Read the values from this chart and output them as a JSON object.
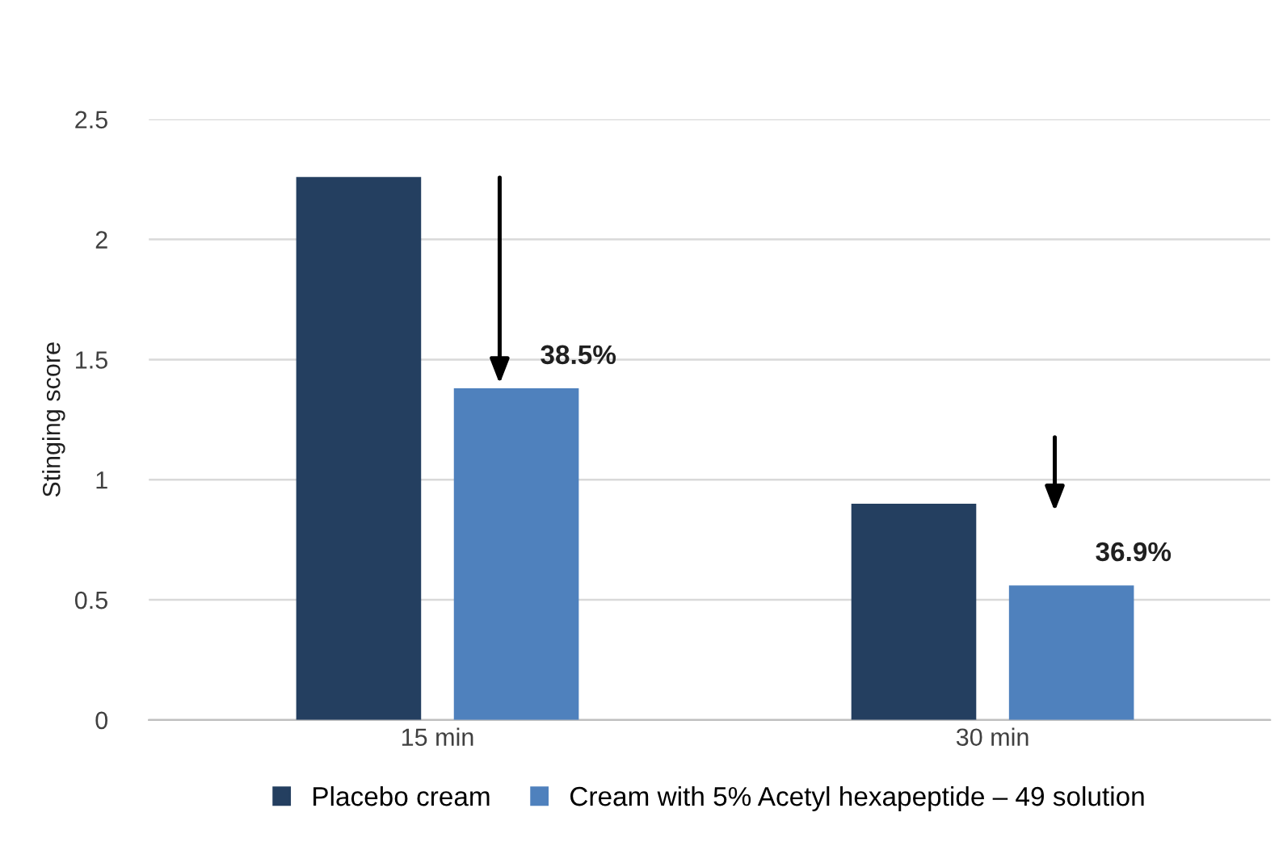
{
  "chart_data": {
    "type": "bar",
    "ylabel": "Stinging score",
    "categories": [
      "15 min",
      "30 min"
    ],
    "series": [
      {
        "name": "Placebo cream",
        "color": "#243f60",
        "values": [
          2.26,
          0.9
        ]
      },
      {
        "name": "Cream with 5% Acetyl hexapeptide – 49 solution",
        "color": "#4f81bd",
        "values": [
          1.38,
          0.56
        ]
      }
    ],
    "ylim": [
      0,
      2.5
    ],
    "yticks": [
      0,
      0.5,
      1,
      1.5,
      2,
      2.5
    ],
    "grid": "y",
    "legend": "bottom",
    "annotations": [
      "38.5%",
      "36.9%"
    ]
  }
}
